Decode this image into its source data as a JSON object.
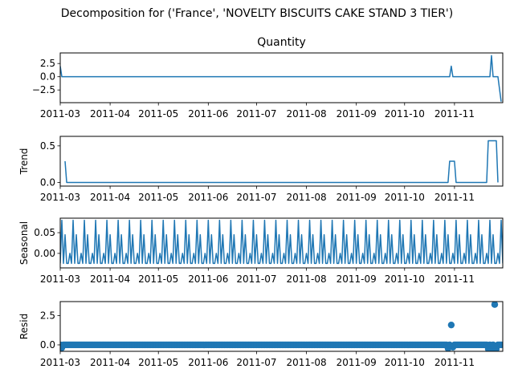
{
  "suptitle": "Decomposition for ('France', 'NOVELTY BISCUITS CAKE STAND 3 TIER')",
  "colors": {
    "series": "#1f77b4"
  },
  "chart_data": [
    {
      "type": "line",
      "panel": "observed",
      "title": "Quantity",
      "ylabel": "",
      "ylim": [
        -4.9,
        4.5
      ],
      "xlim": [
        "2011-03-01",
        "2011-12-01"
      ],
      "yticks": [
        "2.5",
        "0.0",
        "−2.5"
      ],
      "ytick_values": [
        2.5,
        0.0,
        -2.5
      ],
      "xticks": [
        "2011-03",
        "2011-04",
        "2011-05",
        "2011-06",
        "2011-07",
        "2011-08",
        "2011-09",
        "2011-10",
        "2011-11"
      ],
      "x": [
        "2011-03-01",
        "2011-03-02",
        "2011-10-29",
        "2011-10-30",
        "2011-10-31",
        "2011-11-23",
        "2011-11-24",
        "2011-11-25",
        "2011-11-28",
        "2011-11-30"
      ],
      "y": [
        2.0,
        0.0,
        0.0,
        2.0,
        0.0,
        0.0,
        4.0,
        0.0,
        0.0,
        -4.7
      ]
    },
    {
      "type": "line",
      "panel": "trend",
      "title": "",
      "ylabel": "Trend",
      "ylim": [
        -0.05,
        0.63
      ],
      "xlim": [
        "2011-03-01",
        "2011-12-01"
      ],
      "yticks": [
        "0.5",
        "0.0"
      ],
      "ytick_values": [
        0.5,
        0.0
      ],
      "xticks": [
        "2011-03",
        "2011-04",
        "2011-05",
        "2011-06",
        "2011-07",
        "2011-08",
        "2011-09",
        "2011-10",
        "2011-11"
      ],
      "x": [
        "2011-03-04",
        "2011-03-05",
        "2011-10-28",
        "2011-10-29",
        "2011-11-01",
        "2011-11-02",
        "2011-11-21",
        "2011-11-22",
        "2011-11-27",
        "2011-11-28"
      ],
      "y": [
        0.29,
        0.0,
        0.0,
        0.29,
        0.29,
        0.0,
        0.0,
        0.57,
        0.57,
        0.0
      ]
    },
    {
      "type": "line",
      "panel": "seasonal",
      "title": "",
      "ylabel": "Seasonal",
      "ylim": [
        -0.035,
        0.085
      ],
      "xlim": [
        "2011-03-01",
        "2011-12-01"
      ],
      "yticks": [
        "0.05",
        "0.00"
      ],
      "ytick_values": [
        0.05,
        0.0
      ],
      "xticks": [
        "2011-03",
        "2011-04",
        "2011-05",
        "2011-06",
        "2011-07",
        "2011-08",
        "2011-09",
        "2011-10",
        "2011-11"
      ],
      "period_days": 7,
      "pattern": [
        -0.024,
        0.08,
        -0.024,
        0.045,
        -0.024,
        -0.024,
        0.0
      ]
    },
    {
      "type": "scatter",
      "panel": "resid",
      "title": "",
      "ylabel": "Resid",
      "ylim": [
        -0.55,
        3.7
      ],
      "xlim": [
        "2011-03-01",
        "2011-12-01"
      ],
      "yticks": [
        "2.5",
        "0.0"
      ],
      "ytick_values": [
        2.5,
        0.0
      ],
      "xticks": [
        "2011-03",
        "2011-04",
        "2011-05",
        "2011-06",
        "2011-07",
        "2011-08",
        "2011-09",
        "2011-10",
        "2011-11"
      ],
      "baseline_start": "2011-03-01",
      "baseline_end": "2011-11-30",
      "baseline_value": 0.0,
      "outliers": [
        {
          "x": "2011-03-02",
          "y": -0.25
        },
        {
          "x": "2011-10-28",
          "y": -0.3
        },
        {
          "x": "2011-10-30",
          "y": 1.7
        },
        {
          "x": "2011-10-31",
          "y": -0.2
        },
        {
          "x": "2011-11-22",
          "y": -0.35
        },
        {
          "x": "2011-11-24",
          "y": -0.3
        },
        {
          "x": "2011-11-26",
          "y": 3.45
        },
        {
          "x": "2011-11-27",
          "y": -0.35
        },
        {
          "x": "2011-11-30",
          "y": 0.0
        }
      ]
    }
  ]
}
